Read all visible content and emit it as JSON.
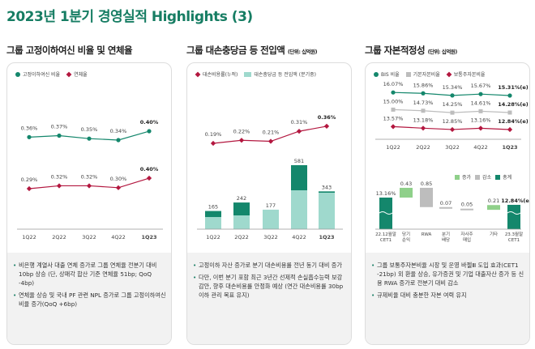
{
  "title": "2023년 1분기 경영실적 Highlights (3)",
  "colors": {
    "teal": "#14876c",
    "light_teal": "#9fd9cd",
    "red": "#b3173f",
    "grey": "#bdbdbd",
    "increase": "#8fd08a"
  },
  "panel1": {
    "title": "그룹 고정이하여신 비율 및 연체율",
    "legend": [
      "고정이하여신 비율",
      "연체율"
    ],
    "notes": [
      "비은행 계열사 대출 연체 증가로 그룹 연체율 전분기 대비 10bp 상승 (단, 상매각 합산 기준 연체율 51bp; QoQ -4bp)",
      "연체율 상승 및 국내 PF 관련 NPL 증가로 그룹 고정이하여신 비율 증가(QoQ +6bp)"
    ]
  },
  "panel2": {
    "title": "그룹 대손충당금 등 전입액",
    "unit": "(단위: 십억원)",
    "legend": [
      "대손비용률(누적)",
      "대손충당금 등 전입액 (분기중)"
    ],
    "notes": [
      "고정이하 자산 증가로 분기 대손비용률 전년 동기 대비 증가",
      "다만, 이번 분기 포함 최근 3년간 선제적 손실흡수능력 보강 감안, 향후 대손비용률 안정화 예상 (연간 대손비용률 30bp 이하 관리 목표 유지)"
    ]
  },
  "panel3": {
    "title": "그룹 자본적정성",
    "unit": "(단위: 십억원)",
    "legend": [
      "BIS 비율",
      "기본자본비율",
      "보통주자본비율"
    ],
    "waterfall_legend": [
      "증가",
      "감소",
      "총계"
    ],
    "notes": [
      "그룹 보통주자본비율 시장 및 운영 바젤Ⅲ 도입 효과(CET1 -21bp) 외 환율 상승, 유가증권 및 기업 대출자산 증가 등 신용 RWA 증가로 전분기 대비 감소",
      "규제비율 대비 충분한 자본 여력 유지"
    ]
  },
  "chart_data": [
    {
      "type": "line",
      "categories": [
        "1Q22",
        "2Q22",
        "3Q22",
        "4Q22",
        "1Q23"
      ],
      "series": [
        {
          "name": "고정이하여신 비율",
          "values": [
            0.36,
            0.37,
            0.35,
            0.34,
            0.4
          ],
          "labels": [
            "0.36%",
            "0.37%",
            "0.35%",
            "0.34%",
            "0.40%"
          ]
        },
        {
          "name": "연체율",
          "values": [
            0.29,
            0.32,
            0.32,
            0.3,
            0.4
          ],
          "labels": [
            "0.29%",
            "0.32%",
            "0.32%",
            "0.30%",
            "0.40%"
          ]
        }
      ]
    },
    {
      "type": "bar",
      "categories": [
        "1Q22",
        "2Q22",
        "3Q22",
        "4Q22",
        "1Q23"
      ],
      "bar_totals": [
        165,
        242,
        177,
        581,
        343
      ],
      "bar_light_portion": [
        110,
        125,
        177,
        353,
        331
      ],
      "line": {
        "name": "대손비용률(누적)",
        "values": [
          0.19,
          0.22,
          0.21,
          0.31,
          0.36
        ],
        "labels": [
          "0.19%",
          "0.22%",
          "0.21%",
          "0.31%",
          "0.36%"
        ]
      }
    },
    {
      "type": "line",
      "categories": [
        "1Q22",
        "2Q22",
        "3Q22",
        "4Q22",
        "1Q23"
      ],
      "series": [
        {
          "name": "BIS 비율",
          "values": [
            16.07,
            15.86,
            15.34,
            15.67,
            15.31
          ],
          "labels": [
            "16.07%",
            "15.86%",
            "15.34%",
            "15.67%",
            "15.31%(e)"
          ]
        },
        {
          "name": "기본자본비율",
          "values": [
            15.0,
            14.73,
            14.25,
            14.61,
            14.28
          ],
          "labels": [
            "15.00%",
            "14.73%",
            "14.25%",
            "14.61%",
            "14.28%(e)"
          ]
        },
        {
          "name": "보통주자본비율",
          "values": [
            13.57,
            13.18,
            12.85,
            13.16,
            12.84
          ],
          "labels": [
            "13.57%",
            "13.18%",
            "12.85%",
            "13.16%",
            "12.84%(e)"
          ]
        }
      ]
    },
    {
      "type": "waterfall",
      "categories": [
        "22.12월말 CET1",
        "당기 순익",
        "RWA",
        "분기 배당",
        "자사주 매입",
        "기타",
        "23.3월말 CET1"
      ],
      "kinds": [
        "total",
        "increase",
        "decrease",
        "decrease",
        "decrease",
        "increase",
        "total"
      ],
      "values": [
        13.16,
        0.43,
        0.85,
        0.07,
        0.05,
        0.21,
        12.84
      ],
      "labels": [
        "13.16%",
        "0.43",
        "0.85",
        "0.07",
        "0.05",
        "0.21",
        "12.84%(e)"
      ]
    }
  ]
}
